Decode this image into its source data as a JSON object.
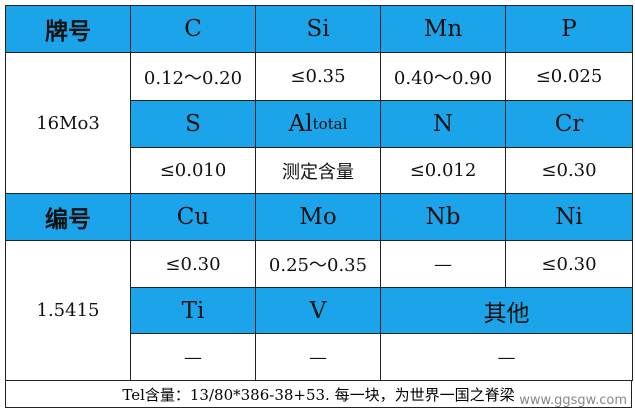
{
  "table1": {
    "header": [
      "牌号",
      "C",
      "Si",
      "Mn",
      "P"
    ],
    "grade": "16Mo3",
    "row1": [
      "0.12～0.20",
      "≤0.35",
      "0.40～0.90",
      "≤0.025"
    ],
    "row2": {
      "s": "S",
      "al": "Al",
      "al_sub": "total",
      "n": "N",
      "cr": "Cr"
    },
    "row3": [
      "≤0.010",
      "测定含量",
      "≤0.012",
      "≤0.30"
    ]
  },
  "table2": {
    "header": [
      "编号",
      "Cu",
      "Mo",
      "Nb",
      "Ni"
    ],
    "number": "1.5415",
    "row1": [
      "≤0.30",
      "0.25～0.35",
      "—",
      "≤0.30"
    ],
    "row2": [
      "Ti",
      "V",
      "其他"
    ],
    "row3": [
      "—",
      "—",
      "—"
    ]
  },
  "footer": "Tel含量：13/80*386-38+53. 每一块，为世界一国之脊梁",
  "watermark": "www.ggsgw.com"
}
